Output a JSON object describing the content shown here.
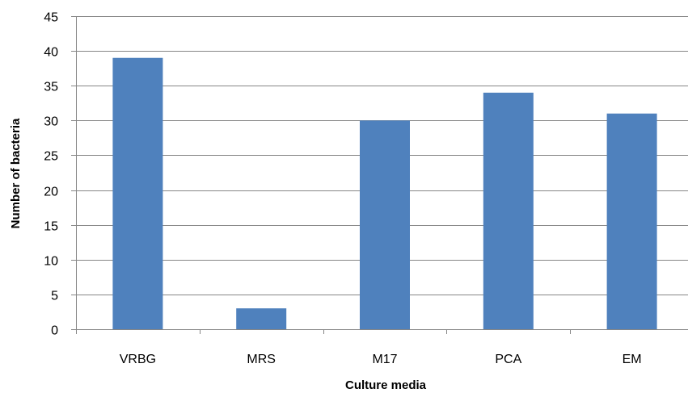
{
  "chart_data": {
    "type": "bar",
    "title": "",
    "xlabel": "Culture media",
    "ylabel": "Number of bacteria",
    "categories": [
      "VRBG",
      "MRS",
      "M17",
      "PCA",
      "EM"
    ],
    "values": [
      39,
      3,
      30,
      34,
      31
    ],
    "ylim": [
      0,
      45
    ],
    "yticks": [
      0,
      5,
      10,
      15,
      20,
      25,
      30,
      35,
      40,
      45
    ],
    "grid": true,
    "legend": "none",
    "colors": {
      "bar": "#4f81bd",
      "grid": "#868686",
      "axis": "#868686"
    }
  }
}
